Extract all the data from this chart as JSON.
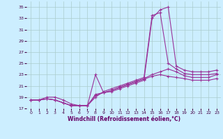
{
  "xlabel": "Windchill (Refroidissement éolien,°C)",
  "bg_color": "#cceeff",
  "grid_color": "#aacccc",
  "line_color": "#993399",
  "xlim": [
    -0.5,
    23.5
  ],
  "ylim": [
    17,
    36
  ],
  "yticks": [
    17,
    19,
    21,
    23,
    25,
    27,
    29,
    31,
    33,
    35
  ],
  "xticks": [
    0,
    1,
    2,
    3,
    4,
    5,
    6,
    7,
    8,
    9,
    10,
    11,
    12,
    13,
    14,
    15,
    16,
    17,
    18,
    19,
    20,
    21,
    22,
    23
  ],
  "line1_x": [
    0,
    1,
    2,
    3,
    4,
    5,
    6,
    7,
    8,
    9,
    10,
    11,
    12,
    13,
    14,
    15,
    16,
    17,
    18,
    19,
    20,
    21,
    22,
    23
  ],
  "line1_y": [
    18.5,
    18.5,
    19.0,
    19.0,
    18.5,
    17.8,
    17.5,
    17.5,
    23.0,
    19.8,
    20.0,
    20.5,
    21.0,
    21.5,
    22.0,
    33.0,
    34.5,
    35.0,
    24.5,
    23.8,
    23.5,
    23.5,
    23.5,
    23.8
  ],
  "line2_x": [
    0,
    1,
    2,
    3,
    4,
    5,
    6,
    7,
    8,
    9,
    10,
    11,
    12,
    13,
    14,
    15,
    16,
    17,
    18,
    19,
    20,
    21,
    22,
    23
  ],
  "line2_y": [
    18.5,
    18.5,
    18.7,
    18.5,
    18.0,
    17.5,
    17.5,
    17.5,
    19.0,
    20.0,
    20.5,
    21.0,
    21.5,
    22.0,
    22.5,
    33.5,
    34.0,
    25.0,
    24.0,
    23.2,
    23.0,
    23.0,
    23.0,
    23.2
  ],
  "line3_x": [
    0,
    1,
    2,
    3,
    4,
    5,
    6,
    7,
    8,
    9,
    10,
    11,
    12,
    13,
    14,
    15,
    16,
    17,
    18,
    19,
    20,
    21,
    22,
    23
  ],
  "line3_y": [
    18.5,
    18.5,
    18.7,
    18.5,
    18.0,
    17.5,
    17.5,
    17.5,
    19.5,
    19.8,
    20.2,
    20.8,
    21.3,
    21.8,
    22.3,
    23.0,
    23.5,
    24.0,
    23.5,
    22.8,
    22.5,
    22.5,
    22.5,
    23.0
  ],
  "line4_x": [
    0,
    1,
    2,
    3,
    4,
    5,
    6,
    7,
    8,
    9,
    10,
    11,
    12,
    13,
    14,
    15,
    16,
    17,
    18,
    19,
    20,
    21,
    22,
    23
  ],
  "line4_y": [
    18.5,
    18.5,
    18.7,
    18.5,
    18.0,
    17.5,
    17.5,
    17.5,
    19.3,
    19.8,
    20.2,
    20.7,
    21.2,
    21.7,
    22.2,
    22.7,
    23.0,
    22.7,
    22.5,
    22.3,
    22.0,
    22.0,
    22.0,
    22.3
  ]
}
